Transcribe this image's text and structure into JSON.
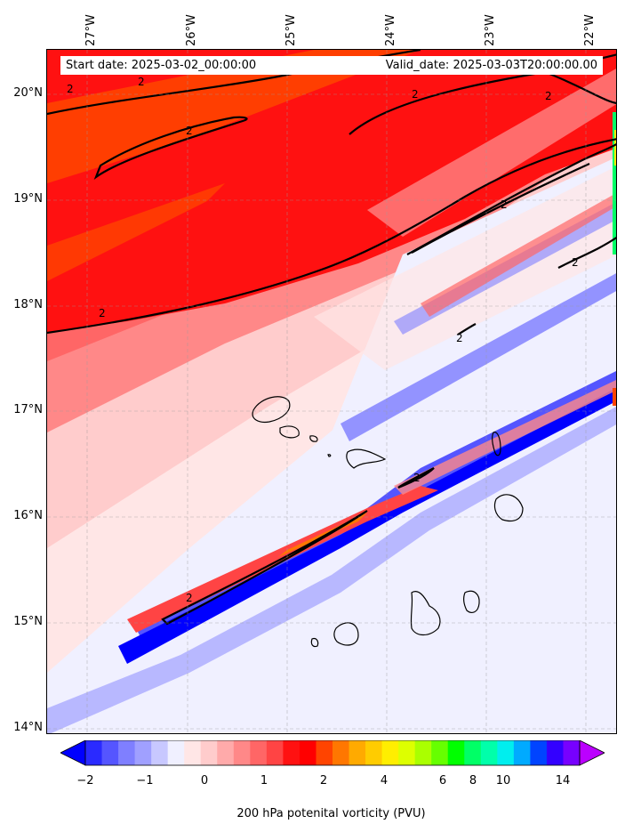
{
  "header": {
    "start_text": "Start date: 2025-03-02_00:00:00",
    "valid_text": "Valid_date: 2025-03-03T20:00:00.00"
  },
  "axes": {
    "longitude_labels": [
      "27°W",
      "26°W",
      "25°W",
      "24°W",
      "23°W",
      "22°W"
    ],
    "latitude_labels": [
      "20°N",
      "19°N",
      "18°N",
      "17°N",
      "16°N",
      "15°N",
      "14°N"
    ]
  },
  "contour_label": "2",
  "colorbar": {
    "label": "200 hPa potenital vorticity (PVU)",
    "tick_labels": [
      "−2",
      "−1",
      "0",
      "1",
      "2",
      "4",
      "6",
      "8",
      "10",
      "14"
    ],
    "colors": [
      "#0000ff",
      "#2a2aff",
      "#5555ff",
      "#7f7fff",
      "#a0a0ff",
      "#c8c8ff",
      "#f0f0ff",
      "#ffe6e6",
      "#ffcccc",
      "#ffaaaa",
      "#ff8888",
      "#ff6666",
      "#ff4444",
      "#ff1111",
      "#ff0000",
      "#ff4400",
      "#ff7700",
      "#ffaa00",
      "#ffcc00",
      "#ffee00",
      "#ddff00",
      "#aaff00",
      "#66ff00",
      "#00ff00",
      "#00ff66",
      "#00ffaa",
      "#00eeee",
      "#00aaff",
      "#0044ff",
      "#3300ff",
      "#7700ff",
      "#bb00ff"
    ]
  }
}
